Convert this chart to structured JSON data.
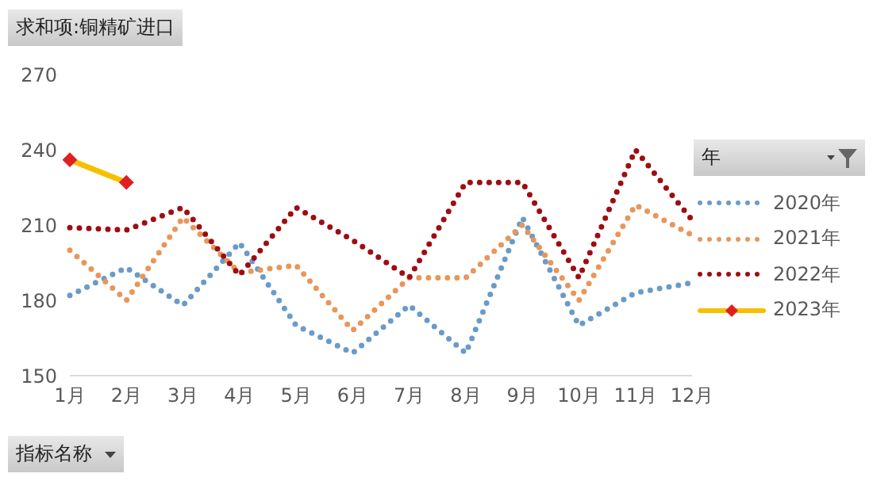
{
  "chart_data": {
    "type": "line",
    "title": "求和项:铜精矿进口",
    "xlabel": "指标名称",
    "legend_title": "年",
    "categories": [
      "1月",
      "2月",
      "3月",
      "4月",
      "5月",
      "6月",
      "7月",
      "8月",
      "9月",
      "10月",
      "11月",
      "12月"
    ],
    "series": [
      {
        "name": "2020年",
        "color": "#6a9bc8",
        "line_style": "dotted",
        "marker": "none",
        "values": [
          182,
          193,
          178,
          203,
          170,
          159,
          178,
          159,
          213,
          170,
          183,
          187
        ]
      },
      {
        "name": "2021年",
        "color": "#e8965a",
        "line_style": "dotted",
        "marker": "none",
        "values": [
          200,
          180,
          213,
          191,
          194,
          168,
          189,
          189,
          210,
          180,
          218,
          206
        ]
      },
      {
        "name": "2022年",
        "color": "#9e0d12",
        "line_style": "dotted",
        "marker": "none",
        "values": [
          209,
          208,
          217,
          190,
          217,
          204,
          189,
          227,
          227,
          189,
          240,
          212
        ]
      },
      {
        "name": "2023年",
        "color": "#f5c000",
        "line_style": "solid",
        "marker": "diamond",
        "values": [
          236,
          227,
          null,
          null,
          null,
          null,
          null,
          null,
          null,
          null,
          null,
          null
        ]
      }
    ],
    "ylim": [
      150,
      270
    ],
    "yticks": [
      150,
      180,
      210,
      240,
      270
    ],
    "grid": false,
    "legend": "right"
  }
}
